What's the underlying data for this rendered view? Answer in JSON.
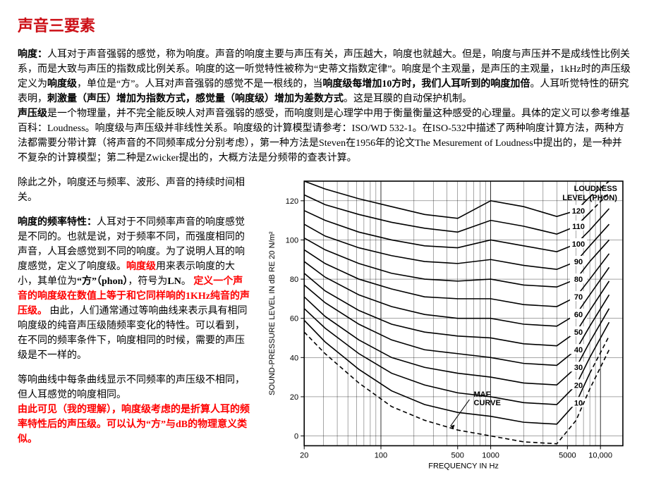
{
  "title": "声音三要素",
  "para1_lead": "响度：",
  "para1_a": "人耳对于声音强弱的感觉，称为响度。声音的响度主要与声压有关，声压越大，响度也就越大。但是，响度与声压并不是成线性比例关系，而是大致与声压的指数成比例关系。响度的这一听觉特性被称为“史蒂文指数定律”。响度是个主观量，是声压的主观量，1kHz时的声压级定义为",
  "para1_b_bold": "响度级",
  "para1_c": "，单位是“方”。人耳对声音强弱的感觉不是一根线的，当",
  "para1_d_bold": "响度级每增加10方时，我们人耳听到的响度加倍",
  "para1_e": "。人耳听觉特性的研究表明，",
  "para1_f_bold": "刺激量（声压）增加为指数方式，感觉量（响度级）增加为差数方式",
  "para1_g": "。这是耳膜的自动保护机制。",
  "para1_h_bold": "声压级",
  "para1_i": "是一个物理量，并不完全能反映人对声音强弱的感受，而响度则是心理学中用于衡量衡量这种感受的心理量。具体的定义可以参考维基百科：Loudness。响度级与声压级并非线性关系。响度级的计算模型请参考：ISO/WD 532-1。在ISO-532中描述了两种响度计算方法，两种方法都需要分带计算（将声音的不同频率成分分别考虑），第一种方法是Steven在1956年的论文The Mesurement of Loudness中提出的，是一种并不复杂的计算模型；第二种是Zwicker提出的，大概方法是分频带的查表计算。",
  "left_p1": "除此之外，响度还与频率、波形、声音的持续时间相关。",
  "left_p2a_bold": "响度的频率特性：",
  "left_p2b": "人耳对于不同频率声音的响度感觉是不同的。也就是说，对于频率不同，而强度相同的声音，人耳会感觉到不同的响度。为了说明人耳的响度感觉，定义了响度级。",
  "left_p2c_red": "响度级",
  "left_p2d": "用来表示响度的大小，其单位为",
  "left_p2e_bold": "“方”（phon）",
  "left_p2f": "，符号为",
  "left_p2g_bold": "LN",
  "left_p2h": "。",
  "left_p3_redbold": "定义一个声音的响度级在数值上等于和它同样响的1KHz纯音的声压级。",
  "left_p4": "由此，人们通常通过等响曲线来表示具有相同响度级的纯音声压级随频率变化的特性。可以看到，在不同的频率条件下，响度相同的时候，需要的声压级是不一样的。",
  "left_p5": "等响曲线中每条曲线显示不同频率的声压级不相同，但人耳感觉的响度相同。",
  "left_p6_redbold": "由此可见（我的理解），响度级考虑的是折算人耳的频率特性后的声压级。可以认为“方”与dB的物理意义类似。",
  "chart": {
    "type": "line",
    "title_label": "LOUDNESS",
    "title_unit": "LEVEL (PHON)",
    "maf_label": "MAF",
    "maf_sub": "CURVE",
    "x_label": "FREQUENCY IN Hz",
    "y_label": "SOUND-PRESSURE LEVEL IN dB RE 20 N/m²",
    "background_color": "#ffffff",
    "axis_color": "#000000",
    "text_color": "#000000",
    "tick_fontsize": 11,
    "label_fontsize": 11,
    "x_ticks": [
      20,
      100,
      500,
      1000,
      5000,
      10000
    ],
    "x_tick_labels": [
      "20",
      "100",
      "500",
      "1000",
      "5000",
      "10,000"
    ],
    "y_ticks": [
      0,
      20,
      40,
      60,
      80,
      100,
      120
    ],
    "x_range": [
      20,
      16000
    ],
    "y_range": [
      -5,
      130
    ],
    "x_scale": "log",
    "y_scale": "linear",
    "line_color": "#000000",
    "line_width_main": 1.6,
    "line_width_grid": 0.35,
    "dash_pattern": "6,4",
    "curves": [
      {
        "phon": 120,
        "dash": false,
        "right_dash": true,
        "pts": [
          [
            20,
            130
          ],
          [
            31,
            126
          ],
          [
            63,
            121
          ],
          [
            125,
            117
          ],
          [
            250,
            113
          ],
          [
            500,
            111
          ],
          [
            1000,
            120
          ],
          [
            2000,
            117
          ],
          [
            4000,
            112
          ],
          [
            6000,
            115
          ],
          [
            8000,
            122
          ],
          [
            12000,
            130
          ]
        ]
      },
      {
        "phon": 110,
        "dash": false,
        "right_dash": true,
        "pts": [
          [
            20,
            123
          ],
          [
            31,
            118
          ],
          [
            63,
            113
          ],
          [
            125,
            109
          ],
          [
            250,
            106
          ],
          [
            500,
            104
          ],
          [
            1000,
            110
          ],
          [
            2000,
            107
          ],
          [
            4000,
            103
          ],
          [
            6000,
            107
          ],
          [
            8000,
            114
          ],
          [
            12000,
            124
          ]
        ]
      },
      {
        "phon": 100,
        "dash": false,
        "right_dash": false,
        "pts": [
          [
            20,
            115
          ],
          [
            31,
            110
          ],
          [
            63,
            104
          ],
          [
            125,
            100
          ],
          [
            250,
            97
          ],
          [
            500,
            96
          ],
          [
            1000,
            100
          ],
          [
            2000,
            97
          ],
          [
            4000,
            94
          ],
          [
            6000,
            98
          ],
          [
            8000,
            105
          ],
          [
            12000,
            116
          ]
        ]
      },
      {
        "phon": 90,
        "dash": false,
        "right_dash": false,
        "pts": [
          [
            20,
            108
          ],
          [
            31,
            102
          ],
          [
            63,
            96
          ],
          [
            125,
            92
          ],
          [
            250,
            89
          ],
          [
            500,
            88
          ],
          [
            1000,
            90
          ],
          [
            2000,
            87
          ],
          [
            4000,
            85
          ],
          [
            6000,
            89
          ],
          [
            8000,
            97
          ],
          [
            12000,
            108
          ]
        ]
      },
      {
        "phon": 80,
        "dash": false,
        "right_dash": false,
        "pts": [
          [
            20,
            101
          ],
          [
            31,
            95
          ],
          [
            63,
            88
          ],
          [
            125,
            83
          ],
          [
            250,
            80
          ],
          [
            500,
            79
          ],
          [
            1000,
            80
          ],
          [
            2000,
            77
          ],
          [
            4000,
            76
          ],
          [
            6000,
            80
          ],
          [
            8000,
            89
          ],
          [
            12000,
            100
          ]
        ]
      },
      {
        "phon": 70,
        "dash": false,
        "right_dash": false,
        "pts": [
          [
            20,
            95
          ],
          [
            31,
            88
          ],
          [
            63,
            80
          ],
          [
            125,
            75
          ],
          [
            250,
            71
          ],
          [
            500,
            70
          ],
          [
            1000,
            70
          ],
          [
            2000,
            67
          ],
          [
            4000,
            66
          ],
          [
            6000,
            71
          ],
          [
            8000,
            80
          ],
          [
            12000,
            93
          ]
        ]
      },
      {
        "phon": 60,
        "dash": false,
        "right_dash": false,
        "pts": [
          [
            20,
            89
          ],
          [
            31,
            81
          ],
          [
            63,
            72
          ],
          [
            125,
            66
          ],
          [
            250,
            62
          ],
          [
            500,
            60
          ],
          [
            1000,
            60
          ],
          [
            2000,
            57
          ],
          [
            4000,
            56
          ],
          [
            6000,
            62
          ],
          [
            8000,
            72
          ],
          [
            12000,
            86
          ]
        ]
      },
      {
        "phon": 50,
        "dash": false,
        "right_dash": false,
        "pts": [
          [
            20,
            83
          ],
          [
            31,
            74
          ],
          [
            63,
            64
          ],
          [
            125,
            57
          ],
          [
            250,
            53
          ],
          [
            500,
            51
          ],
          [
            1000,
            50
          ],
          [
            2000,
            47
          ],
          [
            4000,
            46
          ],
          [
            6000,
            53
          ],
          [
            8000,
            64
          ],
          [
            12000,
            79
          ]
        ]
      },
      {
        "phon": 40,
        "dash": false,
        "right_dash": false,
        "pts": [
          [
            20,
            77
          ],
          [
            31,
            68
          ],
          [
            63,
            57
          ],
          [
            125,
            49
          ],
          [
            250,
            44
          ],
          [
            500,
            42
          ],
          [
            1000,
            40
          ],
          [
            2000,
            37
          ],
          [
            4000,
            36
          ],
          [
            6000,
            44
          ],
          [
            8000,
            56
          ],
          [
            12000,
            72
          ]
        ]
      },
      {
        "phon": 30,
        "dash": false,
        "right_dash": false,
        "pts": [
          [
            20,
            71
          ],
          [
            31,
            61
          ],
          [
            63,
            49
          ],
          [
            125,
            40
          ],
          [
            250,
            35
          ],
          [
            500,
            32
          ],
          [
            1000,
            30
          ],
          [
            2000,
            27
          ],
          [
            4000,
            26
          ],
          [
            6000,
            35
          ],
          [
            8000,
            48
          ],
          [
            12000,
            65
          ]
        ]
      },
      {
        "phon": 20,
        "dash": false,
        "right_dash": false,
        "pts": [
          [
            20,
            65
          ],
          [
            31,
            55
          ],
          [
            63,
            42
          ],
          [
            125,
            32
          ],
          [
            250,
            26
          ],
          [
            500,
            22
          ],
          [
            1000,
            20
          ],
          [
            2000,
            17
          ],
          [
            4000,
            16
          ],
          [
            6000,
            26
          ],
          [
            8000,
            40
          ],
          [
            12000,
            58
          ]
        ]
      },
      {
        "phon": 10,
        "dash": false,
        "right_dash": true,
        "pts": [
          [
            20,
            59
          ],
          [
            31,
            48
          ],
          [
            63,
            34
          ],
          [
            125,
            23
          ],
          [
            250,
            16
          ],
          [
            500,
            12
          ],
          [
            1000,
            10
          ],
          [
            2000,
            7
          ],
          [
            4000,
            6
          ],
          [
            6000,
            17
          ],
          [
            8000,
            32
          ],
          [
            12000,
            51
          ]
        ]
      }
    ],
    "maf_curve": {
      "dash": true,
      "pts": [
        [
          20,
          53
        ],
        [
          31,
          42
        ],
        [
          63,
          27
        ],
        [
          125,
          15
        ],
        [
          250,
          8
        ],
        [
          500,
          3
        ],
        [
          1000,
          0
        ],
        [
          2000,
          -3
        ],
        [
          4000,
          -4
        ],
        [
          6000,
          8
        ],
        [
          8000,
          24
        ],
        [
          12000,
          44
        ]
      ]
    }
  }
}
